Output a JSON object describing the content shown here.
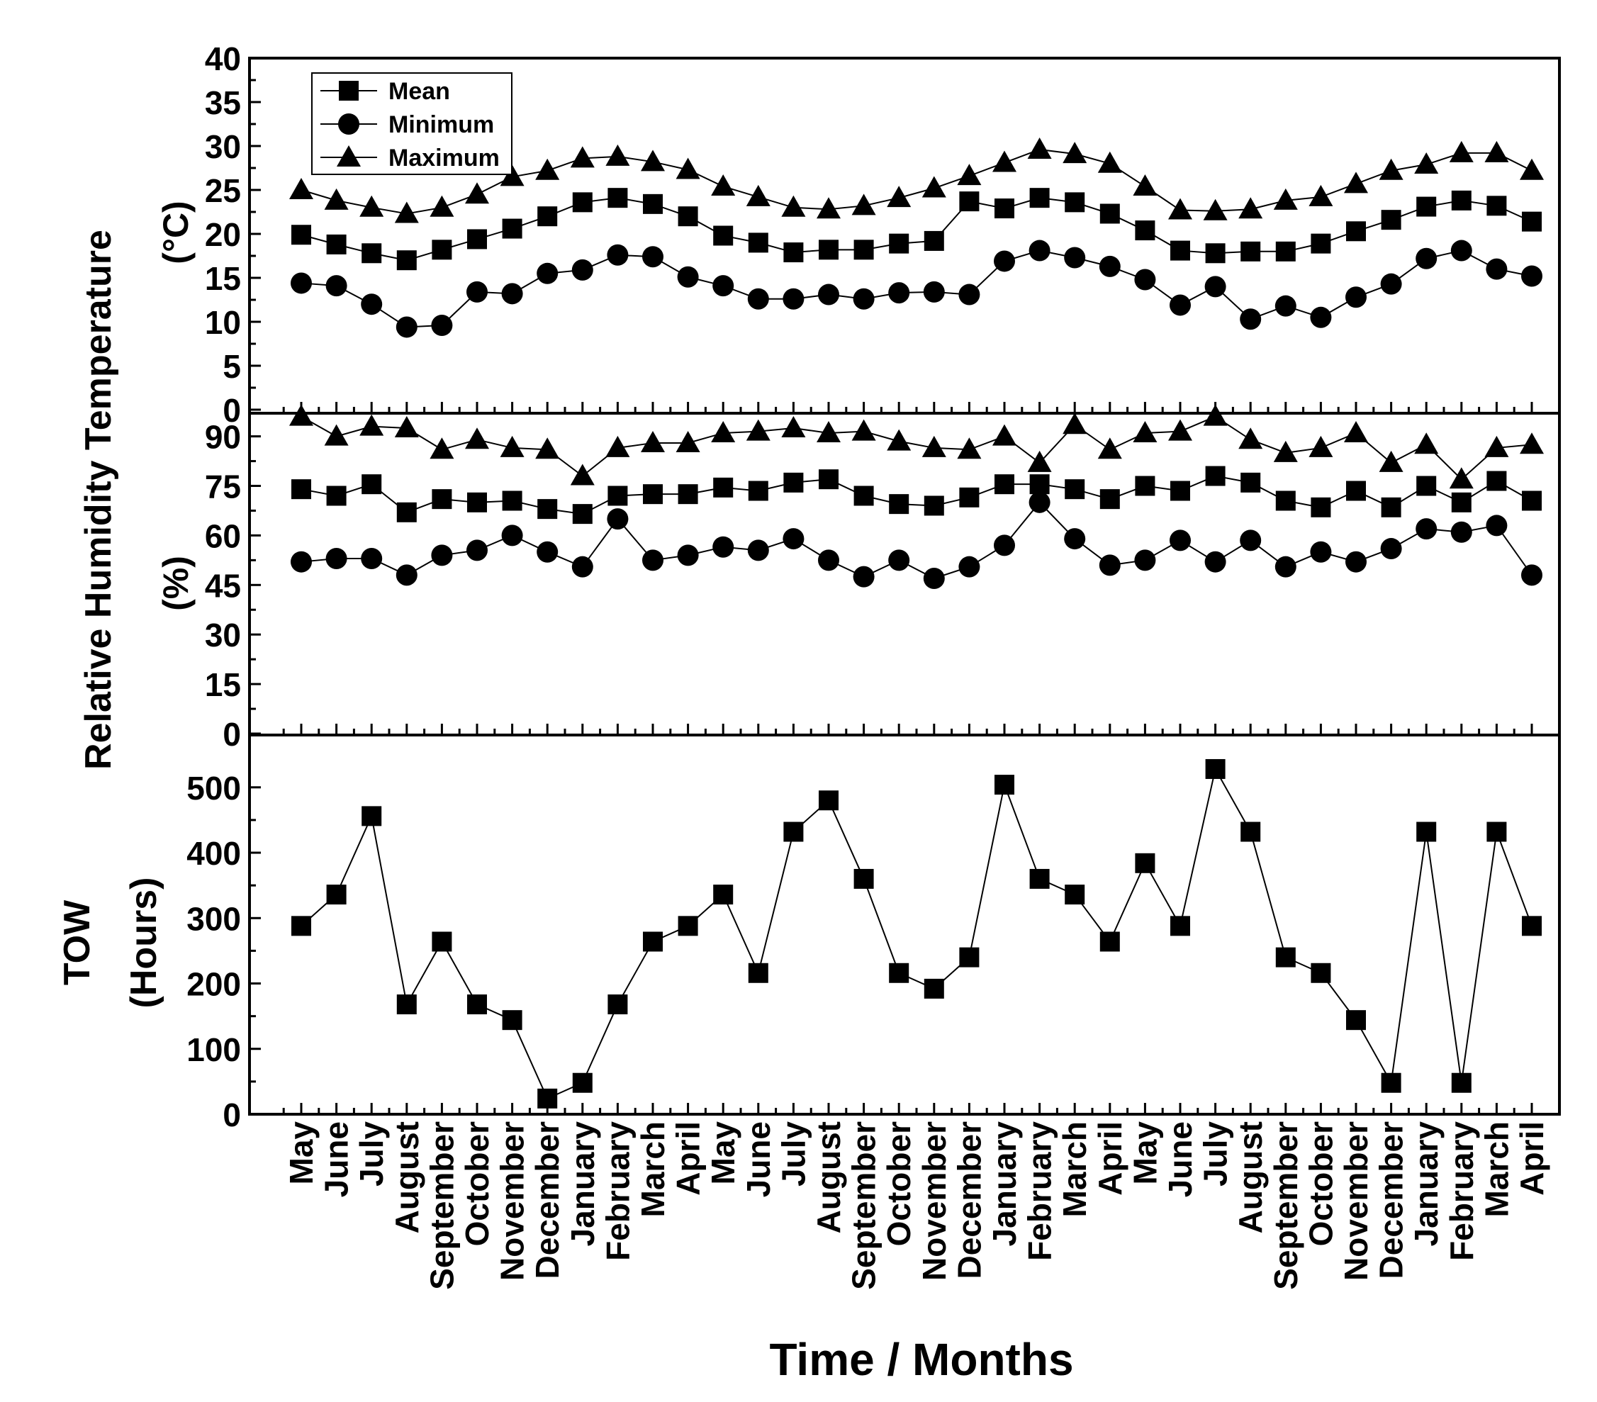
{
  "chart_data": {
    "type": "line",
    "categories": [
      "May",
      "June",
      "July",
      "August",
      "September",
      "October",
      "November",
      "December",
      "January",
      "February",
      "March",
      "April",
      "May",
      "June",
      "July",
      "August",
      "September",
      "October",
      "November",
      "December",
      "January",
      "February",
      "March",
      "April",
      "May",
      "June",
      "July",
      "August",
      "September",
      "October",
      "November",
      "December",
      "January",
      "February",
      "March",
      "April"
    ],
    "xlabel": "Time / Months",
    "panels": [
      {
        "name": "temperature",
        "ylabel": [
          "Temperature",
          "(°C)"
        ],
        "ylim": [
          0,
          40
        ],
        "yticks": [
          0,
          5,
          10,
          15,
          20,
          25,
          30,
          35,
          40
        ],
        "legend": {
          "position": "top-left",
          "entries": [
            "Mean",
            "Minimum",
            "Maximum"
          ]
        },
        "series": [
          {
            "name": "Mean",
            "marker": "square",
            "values": [
              19.9,
              18.8,
              17.8,
              17.0,
              18.2,
              19.4,
              20.6,
              22.0,
              23.6,
              24.1,
              23.4,
              22.0,
              19.8,
              19.0,
              17.9,
              18.2,
              18.2,
              18.9,
              19.2,
              23.7,
              22.9,
              24.1,
              23.6,
              22.3,
              20.4,
              18.1,
              17.8,
              18.0,
              18.0,
              18.9,
              20.3,
              21.6,
              23.1,
              23.8,
              23.2,
              21.4
            ]
          },
          {
            "name": "Minimum",
            "marker": "circle",
            "values": [
              14.4,
              14.1,
              12.0,
              9.4,
              9.6,
              13.4,
              13.2,
              15.5,
              15.9,
              17.6,
              17.4,
              15.1,
              14.1,
              12.6,
              12.6,
              13.1,
              12.6,
              13.3,
              13.4,
              13.1,
              16.9,
              18.1,
              17.3,
              16.3,
              14.8,
              11.9,
              14.0,
              10.3,
              11.8,
              10.5,
              12.8,
              14.3,
              17.2,
              18.1,
              16.0,
              15.2
            ]
          },
          {
            "name": "Maximum",
            "marker": "triangle",
            "values": [
              25.0,
              23.8,
              23.0,
              22.3,
              23.0,
              24.5,
              26.5,
              27.2,
              28.6,
              28.8,
              28.2,
              27.3,
              25.4,
              24.2,
              23.0,
              22.8,
              23.2,
              24.1,
              25.2,
              26.6,
              28.1,
              29.6,
              29.1,
              28.0,
              25.4,
              22.7,
              22.6,
              22.8,
              23.8,
              24.2,
              25.7,
              27.2,
              27.9,
              29.2,
              29.2,
              27.2
            ]
          }
        ]
      },
      {
        "name": "humidity",
        "ylabel": [
          "Relative Humidity",
          "(%)"
        ],
        "ylim": [
          0,
          97
        ],
        "yticks": [
          0,
          15,
          30,
          45,
          60,
          75,
          90
        ],
        "series": [
          {
            "name": "Mean",
            "marker": "square",
            "values": [
              74,
              72,
              75.5,
              67,
              71,
              70,
              70.5,
              68,
              66.5,
              72,
              72.5,
              72.5,
              74.5,
              73.5,
              76,
              77,
              72,
              69.5,
              69,
              71.5,
              75.5,
              75.5,
              74,
              71,
              75,
              73.5,
              78,
              76,
              70.5,
              68.5,
              73.5,
              68.5,
              75,
              70,
              76.5,
              70.5
            ]
          },
          {
            "name": "Minimum",
            "marker": "circle",
            "values": [
              52,
              53,
              53,
              48,
              54,
              55.5,
              60,
              55,
              50.5,
              65,
              52.5,
              54,
              56.5,
              55.5,
              59,
              52.5,
              47.5,
              52.5,
              47,
              50.5,
              57,
              70,
              59,
              51,
              52.5,
              58.5,
              52,
              58.5,
              50.5,
              55,
              52,
              56,
              62,
              61,
              63,
              48
            ]
          },
          {
            "name": "Maximum",
            "marker": "triangle",
            "values": [
              96,
              90,
              93,
              92.5,
              86,
              89,
              86.5,
              86,
              78,
              86.5,
              88,
              88,
              91,
              91.5,
              92.5,
              91,
              91.5,
              88.5,
              86.5,
              86,
              90,
              82,
              93.5,
              86,
              91,
              91.5,
              96,
              89,
              85,
              86.5,
              91,
              82,
              87.5,
              77,
              86.5,
              87.5
            ]
          }
        ]
      },
      {
        "name": "tow",
        "ylabel": [
          "TOW",
          "(Hours)"
        ],
        "ylim": [
          0,
          580
        ],
        "yticks": [
          0,
          100,
          200,
          300,
          400,
          500
        ],
        "series": [
          {
            "name": "TOW",
            "marker": "square",
            "values": [
              288,
              336,
              456,
              168,
              264,
              168,
              144,
              24,
              48,
              168,
              264,
              288,
              336,
              216,
              432,
              480,
              360,
              216,
              192,
              240,
              504,
              360,
              336,
              264,
              384,
              288,
              528,
              432,
              240,
              216,
              144,
              48,
              432,
              48,
              432,
              288
            ]
          }
        ]
      }
    ]
  }
}
